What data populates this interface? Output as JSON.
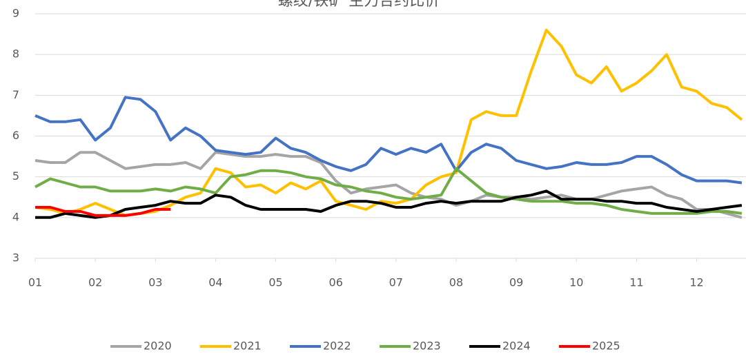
{
  "chart_data": {
    "type": "line",
    "title": "螺纹/铁矿 主力合约比价",
    "x": [
      1,
      1.25,
      1.5,
      1.75,
      2,
      2.25,
      2.5,
      2.75,
      3,
      3.25,
      3.5,
      3.75,
      4,
      4.25,
      4.5,
      4.75,
      5,
      5.25,
      5.5,
      5.75,
      6,
      6.25,
      6.5,
      6.75,
      7,
      7.25,
      7.5,
      7.75,
      8,
      8.25,
      8.5,
      8.75,
      9,
      9.25,
      9.5,
      9.75,
      10,
      10.25,
      10.5,
      10.75,
      11,
      11.25,
      11.5,
      11.75,
      12,
      12.25,
      12.5,
      12.75
    ],
    "xlim": [
      1,
      12.82
    ],
    "xticks": [
      {
        "value": 1,
        "label": "01"
      },
      {
        "value": 2,
        "label": "02"
      },
      {
        "value": 3,
        "label": "03"
      },
      {
        "value": 4,
        "label": "04"
      },
      {
        "value": 5,
        "label": "05"
      },
      {
        "value": 6,
        "label": "06"
      },
      {
        "value": 7,
        "label": "07"
      },
      {
        "value": 8,
        "label": "08"
      },
      {
        "value": 9,
        "label": "09"
      },
      {
        "value": 10,
        "label": "10"
      },
      {
        "value": 11,
        "label": "11"
      },
      {
        "value": 12,
        "label": "12"
      }
    ],
    "ylim": [
      3,
      9
    ],
    "yticks": [
      3,
      4,
      5,
      6,
      7,
      8,
      9
    ],
    "grid": true,
    "legend": "bottom",
    "series": [
      {
        "name": "2020",
        "color": "#a5a5a5",
        "values": [
          5.4,
          5.35,
          5.35,
          5.6,
          5.6,
          5.4,
          5.2,
          5.25,
          5.3,
          5.3,
          5.35,
          5.2,
          5.6,
          5.55,
          5.5,
          5.5,
          5.55,
          5.5,
          5.5,
          5.35,
          4.9,
          4.6,
          4.7,
          4.75,
          4.8,
          4.6,
          4.5,
          4.45,
          4.3,
          4.4,
          4.55,
          4.5,
          4.5,
          4.45,
          4.5,
          4.55,
          4.45,
          4.45,
          4.55,
          4.65,
          4.7,
          4.75,
          4.55,
          4.45,
          4.2,
          4.2,
          4.1,
          4.0
        ]
      },
      {
        "name": "2021",
        "color": "#ffc000",
        "values": [
          4.25,
          4.2,
          4.1,
          4.2,
          4.35,
          4.2,
          4.05,
          4.1,
          4.15,
          4.3,
          4.5,
          4.6,
          5.2,
          5.1,
          4.75,
          4.8,
          4.6,
          4.85,
          4.7,
          4.9,
          4.4,
          4.3,
          4.2,
          4.4,
          4.35,
          4.45,
          4.8,
          5.0,
          5.1,
          6.4,
          6.6,
          6.5,
          6.5,
          7.6,
          8.6,
          8.2,
          7.5,
          7.3,
          7.7,
          7.1,
          7.3,
          7.6,
          8.0,
          7.2,
          7.1,
          6.8,
          6.7,
          6.4
        ]
      },
      {
        "name": "2022",
        "color": "#4472c4",
        "values": [
          6.5,
          6.35,
          6.35,
          6.4,
          5.9,
          6.2,
          6.95,
          6.9,
          6.6,
          5.9,
          6.2,
          6.0,
          5.65,
          5.6,
          5.55,
          5.6,
          5.95,
          5.7,
          5.6,
          5.4,
          5.25,
          5.15,
          5.3,
          5.7,
          5.55,
          5.7,
          5.6,
          5.8,
          5.15,
          5.6,
          5.8,
          5.7,
          5.4,
          5.3,
          5.2,
          5.25,
          5.35,
          5.3,
          5.3,
          5.35,
          5.5,
          5.5,
          5.3,
          5.05,
          4.9,
          4.9,
          4.9,
          4.85
        ]
      },
      {
        "name": "2023",
        "color": "#70ad47",
        "values": [
          4.75,
          4.95,
          4.85,
          4.75,
          4.75,
          4.65,
          4.65,
          4.65,
          4.7,
          4.65,
          4.75,
          4.7,
          4.6,
          5.0,
          5.05,
          5.15,
          5.15,
          5.1,
          5.0,
          4.95,
          4.8,
          4.75,
          4.65,
          4.6,
          4.5,
          4.45,
          4.5,
          4.55,
          5.2,
          4.9,
          4.6,
          4.5,
          4.45,
          4.4,
          4.4,
          4.4,
          4.35,
          4.35,
          4.3,
          4.2,
          4.15,
          4.1,
          4.1,
          4.1,
          4.1,
          4.15,
          4.15,
          4.1
        ]
      },
      {
        "name": "2024",
        "color": "#000000",
        "values": [
          4.0,
          4.0,
          4.1,
          4.05,
          4.0,
          4.05,
          4.2,
          4.25,
          4.3,
          4.4,
          4.35,
          4.35,
          4.55,
          4.5,
          4.3,
          4.2,
          4.2,
          4.2,
          4.2,
          4.15,
          4.3,
          4.4,
          4.4,
          4.35,
          4.25,
          4.25,
          4.35,
          4.4,
          4.35,
          4.4,
          4.4,
          4.4,
          4.5,
          4.55,
          4.65,
          4.45,
          4.45,
          4.45,
          4.4,
          4.4,
          4.35,
          4.35,
          4.25,
          4.2,
          4.15,
          4.2,
          4.25,
          4.3
        ]
      },
      {
        "name": "2025",
        "color": "#ff0000",
        "values": [
          4.25,
          4.25,
          4.15,
          4.15,
          4.05,
          4.05,
          4.05,
          4.1,
          4.2,
          4.2,
          null,
          null,
          null,
          null,
          null,
          null,
          null,
          null,
          null,
          null,
          null,
          null,
          null,
          null,
          null,
          null,
          null,
          null,
          null,
          null,
          null,
          null,
          null,
          null,
          null,
          null,
          null,
          null,
          null,
          null,
          null,
          null,
          null,
          null,
          null,
          null,
          null,
          null
        ]
      }
    ]
  }
}
